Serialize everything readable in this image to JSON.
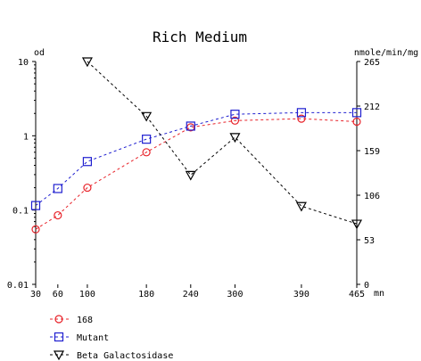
{
  "chart_data": {
    "type": "line",
    "title": "Rich Medium",
    "left_axis_label": "od",
    "right_axis_label": "nmole/min/mg",
    "x_unit_label": "mn",
    "x": [
      30,
      60,
      100,
      180,
      240,
      300,
      390,
      465
    ],
    "x_tick_labels": [
      "30",
      "60",
      "100",
      "180",
      "240",
      "300",
      "390",
      "465"
    ],
    "left_scale": "log",
    "left_ylim": [
      0.01,
      10
    ],
    "left_tick_labels": [
      "10",
      "1",
      "0.1",
      "0.01"
    ],
    "right_ylim": [
      0,
      265
    ],
    "right_tick_labels": [
      "265",
      "212",
      "159",
      "106",
      "53",
      "0"
    ],
    "grid": false,
    "legend_position": "bottom-left",
    "series": [
      {
        "name": "168",
        "axis": "left",
        "marker": "circle",
        "color": "#e8232a",
        "x": [
          30,
          60,
          100,
          180,
          240,
          300,
          390,
          465
        ],
        "values": [
          0.055,
          0.085,
          0.2,
          0.6,
          1.3,
          1.6,
          1.7,
          1.55
        ]
      },
      {
        "name": "Mutant",
        "axis": "left",
        "marker": "square",
        "color": "#1f1fd0",
        "x": [
          30,
          60,
          100,
          180,
          240,
          300,
          390,
          465
        ],
        "values": [
          0.115,
          0.195,
          0.45,
          0.9,
          1.35,
          1.95,
          2.05,
          2.05
        ]
      },
      {
        "name": "Beta Galactosidase",
        "axis": "right",
        "marker": "triangle-down",
        "color": "#000000",
        "x": [
          100,
          180,
          240,
          300,
          390,
          465
        ],
        "values": [
          265,
          200,
          130,
          175,
          93,
          72
        ]
      }
    ]
  }
}
